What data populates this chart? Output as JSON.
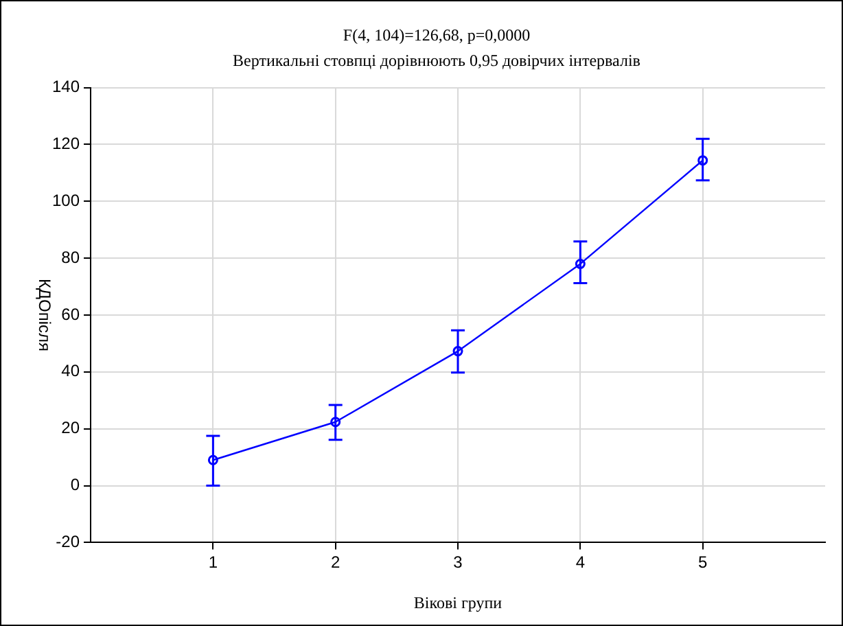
{
  "chart_data": {
    "type": "line",
    "title": "F(4, 104)=126,68, p=0,0000",
    "subtitle": "Вертикальні стовпці дорівнюють 0,95 довірчих інтервалів",
    "xlabel": "Вікові групи",
    "ylabel": "КДОпісля",
    "x": [
      1,
      2,
      3,
      4,
      5
    ],
    "series": [
      {
        "color": "#0000ff",
        "values": [
          9,
          22.4,
          47.3,
          78,
          114.4
        ],
        "errors": [
          [
            0,
            17.5
          ],
          [
            16.1,
            28.4
          ],
          [
            39.8,
            54.6
          ],
          [
            71.2,
            85.9
          ],
          [
            107.4,
            122
          ]
        ]
      }
    ],
    "xlim": [
      0,
      6
    ],
    "xticks": [
      1,
      2,
      3,
      4,
      5
    ],
    "ylim": [
      -20,
      140
    ],
    "yticks": [
      -20,
      0,
      20,
      40,
      60,
      80,
      100,
      120,
      140
    ],
    "grid": true,
    "legend": false,
    "marker": "circle",
    "line_style": "solid"
  }
}
